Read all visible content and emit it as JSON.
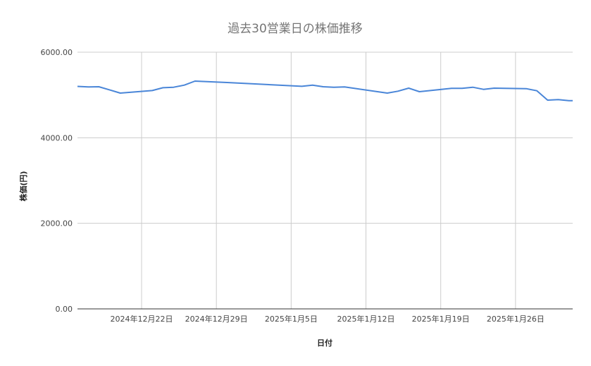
{
  "chart_data": {
    "type": "line",
    "title": "過去30営業日の株価推移",
    "xlabel": "日付",
    "ylabel": "株価(円)",
    "ylim": [
      0,
      6000
    ],
    "yticks": [
      "0.00",
      "2000.00",
      "4000.00",
      "6000.00"
    ],
    "ytick_values": [
      0,
      2000,
      4000,
      6000
    ],
    "xticks": [
      {
        "date": "2024-12-22",
        "label": "2024年12月22日"
      },
      {
        "date": "2024-12-29",
        "label": "2024年12月29日"
      },
      {
        "date": "2025-01-05",
        "label": "2025年1月5日"
      },
      {
        "date": "2025-01-12",
        "label": "2025年1月12日"
      },
      {
        "date": "2025-01-19",
        "label": "2025年1月19日"
      },
      {
        "date": "2025-01-26",
        "label": "2025年1月26日"
      }
    ],
    "xlim": [
      "2024-12-16",
      "2025-01-31"
    ],
    "grid": true,
    "line_color": "#4a86d8",
    "series": [
      {
        "x": [
          "2024-12-16",
          "2024-12-17",
          "2024-12-18",
          "2024-12-19",
          "2024-12-20",
          "2024-12-23",
          "2024-12-24",
          "2024-12-25",
          "2024-12-26",
          "2024-12-27",
          "2024-12-30",
          "2025-01-06",
          "2025-01-07",
          "2025-01-08",
          "2025-01-09",
          "2025-01-10",
          "2025-01-14",
          "2025-01-15",
          "2025-01-16",
          "2025-01-17",
          "2025-01-20",
          "2025-01-21",
          "2025-01-22",
          "2025-01-23",
          "2025-01-24",
          "2025-01-27",
          "2025-01-28",
          "2025-01-29",
          "2025-01-30",
          "2025-01-31"
        ],
        "values": [
          5200,
          5187,
          5192,
          5120,
          5044,
          5104,
          5170,
          5180,
          5230,
          5324,
          5291,
          5203,
          5230,
          5192,
          5180,
          5187,
          5044,
          5088,
          5159,
          5077,
          5154,
          5154,
          5180,
          5131,
          5159,
          5148,
          5099,
          4879,
          4890,
          4868
        ]
      }
    ]
  }
}
